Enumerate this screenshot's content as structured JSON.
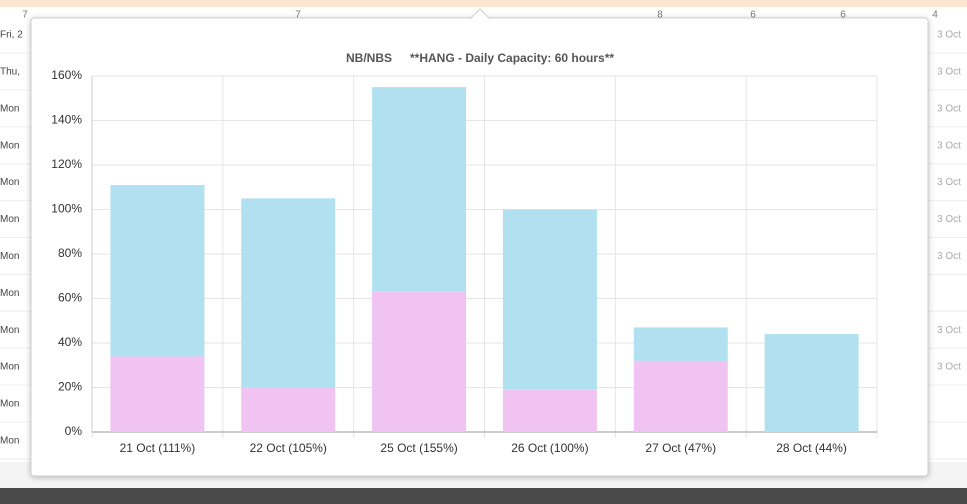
{
  "ui": {
    "top_row": [
      "7",
      "7",
      "8",
      "6",
      "6",
      "4"
    ],
    "left_labels": [
      "Fri, 2",
      "Thu,",
      "Mon",
      "Mon",
      "Mon",
      "Mon",
      "Mon",
      "Mon",
      "Mon",
      "Mon",
      "Mon",
      "Mon"
    ],
    "right_labels": [
      "3 Oct",
      "3 Oct",
      "3 Oct",
      "3 Oct",
      "3 Oct",
      "3 Oct",
      "3 Oct",
      "3 Oct",
      "3 Oct"
    ]
  },
  "chart_data": {
    "type": "stacked-bar",
    "title": "NB/NBS",
    "subtitle": "**HANG - Daily Capacity: 60 hours**",
    "categories": [
      "21 Oct (111%)",
      "22 Oct (105%)",
      "25 Oct (155%)",
      "26 Oct (100%)",
      "27 Oct (47%)",
      "28 Oct (44%)"
    ],
    "series": [
      {
        "color": "#f0c3f3",
        "values": [
          34,
          20,
          63,
          19,
          32,
          0
        ]
      },
      {
        "color": "#b1e1f0",
        "values": [
          77,
          85,
          92,
          81,
          15,
          44
        ]
      }
    ],
    "ylim": [
      0,
      160
    ],
    "yticks": [
      {
        "value": 0,
        "label": "0%"
      },
      {
        "value": 20,
        "label": "20%"
      },
      {
        "value": 40,
        "label": "40%"
      },
      {
        "value": 60,
        "label": "60%"
      },
      {
        "value": 80,
        "label": "80%"
      },
      {
        "value": 100,
        "label": "100%"
      },
      {
        "value": 120,
        "label": "120%"
      },
      {
        "value": 140,
        "label": "140%"
      },
      {
        "value": 160,
        "label": "160%"
      }
    ],
    "grid": true
  }
}
